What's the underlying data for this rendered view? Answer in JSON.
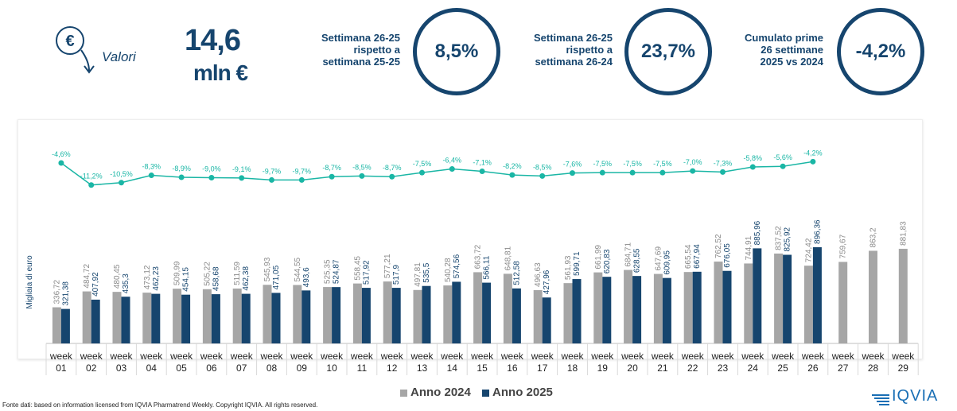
{
  "header": {
    "metric_label": "Valori",
    "metric_value": "14,6",
    "metric_unit": "mln €",
    "kpis": [
      {
        "text": [
          "Settimana 26-25",
          "rispetto a",
          "settimana 25-25"
        ],
        "value": "8,5%"
      },
      {
        "text": [
          "Settimana 26-25",
          "rispetto a",
          "settimana 26-24"
        ],
        "value": "23,7%"
      },
      {
        "text": [
          "Cumulato prime",
          "26 settimane",
          "2025 vs 2024"
        ],
        "value": "-4,2%"
      }
    ]
  },
  "colors": {
    "series_2024": "#a6a6a6",
    "series_2025": "#16456e",
    "variation_line": "#1ab6a5",
    "brand": "#16456e"
  },
  "chart_data": {
    "type": "bar",
    "ylabel": "Migliaia di euro",
    "categories": [
      "week 01",
      "week 02",
      "week 03",
      "week 04",
      "week 05",
      "week 06",
      "week 07",
      "week 08",
      "week 09",
      "week 10",
      "week 11",
      "week 12",
      "week 13",
      "week 14",
      "week 15",
      "week 16",
      "week 17",
      "week 18",
      "week 19",
      "week 20",
      "week 21",
      "week 22",
      "week 23",
      "week 24",
      "week 25",
      "week 26",
      "week 27",
      "week 28",
      "week 29"
    ],
    "series": [
      {
        "name": "Anno 2024",
        "values": [
          336.72,
          484.72,
          480.45,
          473.12,
          509.99,
          505.22,
          511.59,
          545.93,
          544.55,
          525.35,
          558.45,
          577.21,
          497.81,
          540.28,
          663.72,
          648.81,
          496.63,
          561.93,
          661.99,
          684.71,
          647.69,
          665.54,
          762.52,
          744.91,
          837.52,
          724.42,
          759.67,
          863.2,
          881.83
        ],
        "labels": [
          "336,72",
          "484,72",
          "480,45",
          "473,12",
          "509,99",
          "505,22",
          "511,59",
          "545,93",
          "544,55",
          "525,35",
          "558,45",
          "577,21",
          "497,81",
          "540,28",
          "663,72",
          "648,81",
          "496,63",
          "561,93",
          "661,99",
          "684,71",
          "647,69",
          "665,54",
          "762,52",
          "744,91",
          "837,52",
          "724,42",
          "759,67",
          "863,2",
          "881,83"
        ]
      },
      {
        "name": "Anno 2025",
        "values": [
          321.38,
          407.92,
          435.3,
          462.23,
          454.15,
          458.68,
          462.38,
          471.05,
          493.6,
          524.87,
          517.92,
          517.9,
          535.5,
          574.56,
          566.11,
          512.58,
          427.96,
          599.71,
          620.83,
          628.55,
          609.95,
          667.94,
          676.05,
          885.96,
          825.92,
          896.36,
          null,
          null,
          null
        ],
        "labels": [
          "321,38",
          "407,92",
          "435,3",
          "462,23",
          "454,15",
          "458,68",
          "462,38",
          "471,05",
          "493,6",
          "524,87",
          "517,92",
          "517,9",
          "535,5",
          "574,56",
          "566,11",
          "512,58",
          "427,96",
          "599,71",
          "620,83",
          "628,55",
          "609,95",
          "667,94",
          "676,05",
          "885,96",
          "825,92",
          "896,36",
          null,
          null,
          null
        ]
      }
    ],
    "variation": {
      "values": [
        -4.6,
        -11.2,
        -10.5,
        -8.3,
        -8.9,
        -9.0,
        -9.1,
        -9.7,
        -9.7,
        -8.7,
        -8.5,
        -8.7,
        -7.5,
        -6.4,
        -7.1,
        -8.2,
        -8.5,
        -7.6,
        -7.5,
        -7.5,
        -7.5,
        -7.0,
        -7.3,
        -5.8,
        -5.6,
        -4.2
      ],
      "labels": [
        "-4,6%",
        "-11,2%",
        "-10,5%",
        "-8,3%",
        "-8,9%",
        "-9,0%",
        "-9,1%",
        "-9,7%",
        "-9,7%",
        "-8,7%",
        "-8,5%",
        "-8,7%",
        "-7,5%",
        "-6,4%",
        "-7,1%",
        "-8,2%",
        "-8,5%",
        "-7,6%",
        "-7,5%",
        "-7,5%",
        "-7,5%",
        "-7,0%",
        "-7,3%",
        "-5,8%",
        "-5,6%",
        "-4,2%"
      ]
    },
    "legend": "bottom"
  },
  "footer": {
    "source": "Fonte dati: based on information licensed from IQVIA Pharmatrend Weekly. Copyright IQVIA. All rights reserved.",
    "brand": "IQVIA"
  }
}
